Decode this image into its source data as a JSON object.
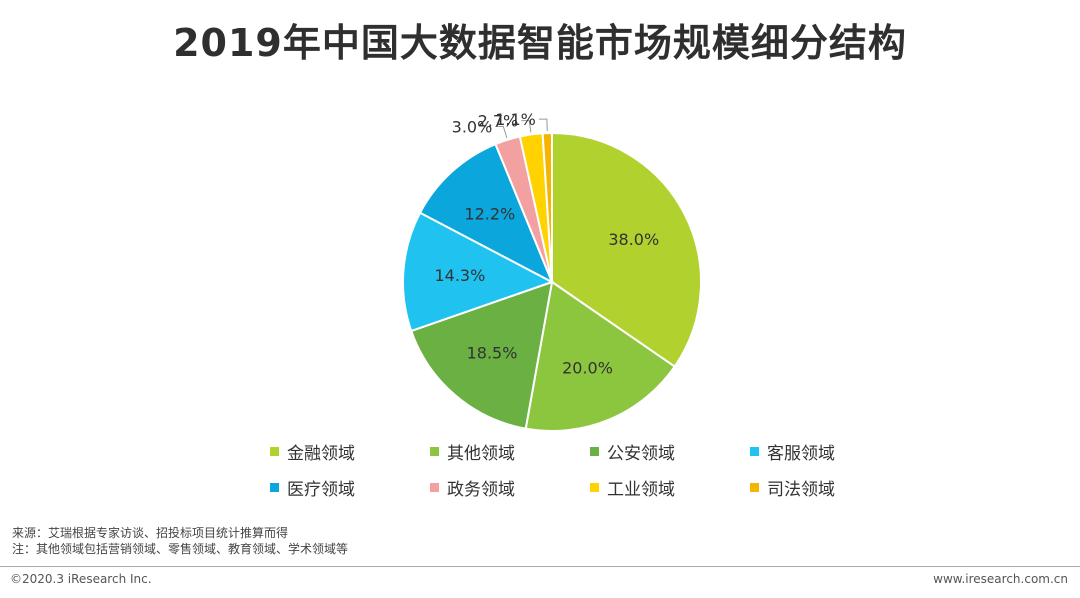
{
  "title": "2019年中国大数据智能市场规模细分结构",
  "chart_data": {
    "type": "pie",
    "title": "2019年中国大数据智能市场规模细分结构",
    "legend_position": "bottom",
    "slices": [
      {
        "name": "金融领域",
        "value": 38.0,
        "label": "38.0%",
        "color": "#b1d12e"
      },
      {
        "name": "其他领域",
        "value": 20.0,
        "label": "20.0%",
        "color": "#8cc63f"
      },
      {
        "name": "公安领域",
        "value": 18.5,
        "label": "18.5%",
        "color": "#6ab042"
      },
      {
        "name": "客服领域",
        "value": 14.3,
        "label": "14.3%",
        "color": "#20c3ef"
      },
      {
        "name": "医疗领域",
        "value": 12.2,
        "label": "12.2%",
        "color": "#0aa6dc"
      },
      {
        "name": "政务领域",
        "value": 3.0,
        "label": "3.0%",
        "color": "#f2a0a0"
      },
      {
        "name": "工业领域",
        "value": 2.7,
        "label": "2.7%",
        "color": "#ffd200"
      },
      {
        "name": "司法领域",
        "value": 1.1,
        "label": "1.1%",
        "color": "#f5b400"
      }
    ]
  },
  "source": {
    "line1": "来源：艾瑞根据专家访谈、招投标项目统计推算而得",
    "line2": "注：其他领域包括营销领域、零售领域、教育领域、学术领域等"
  },
  "footer": {
    "copyright": "©2020.3 iResearch Inc.",
    "website": "www.iresearch.com.cn"
  }
}
